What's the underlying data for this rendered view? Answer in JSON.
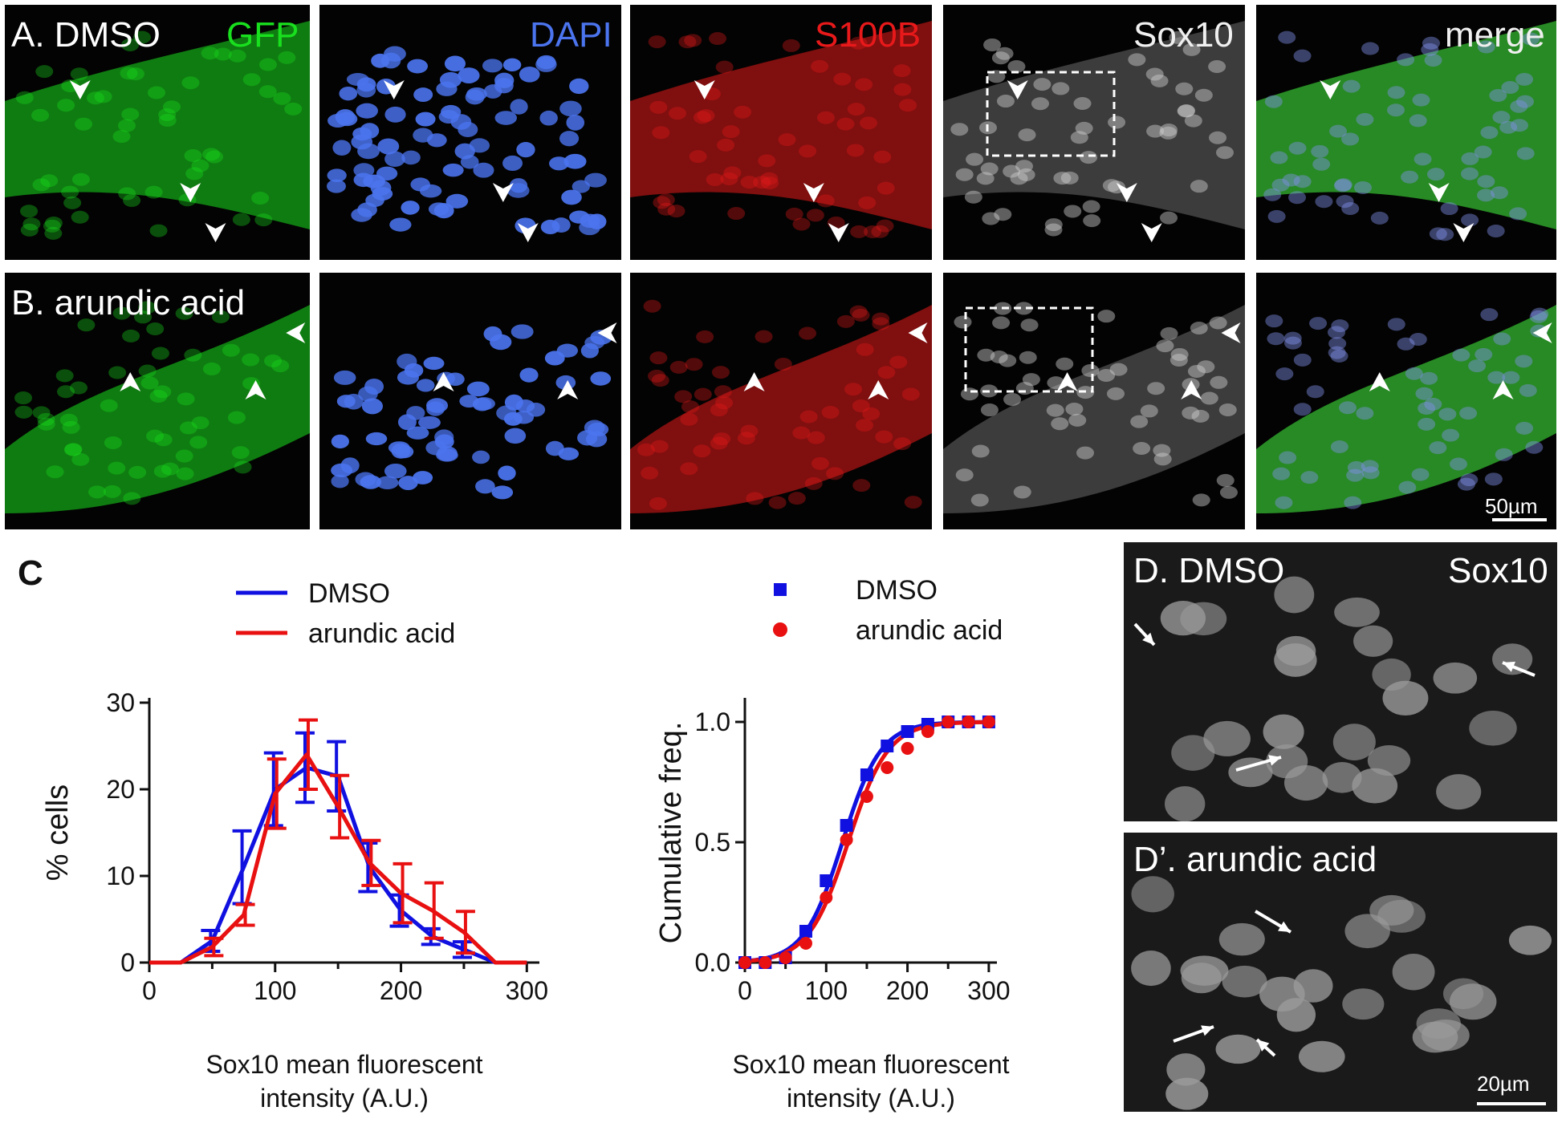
{
  "colors": {
    "gfp": "#19e01e",
    "dapi": "#4b74ee",
    "s100b": "#e8191a",
    "sox10": "#ffffff",
    "merge": "#ffffff",
    "dmso_series": "#1010e0",
    "arundic_series": "#e81010"
  },
  "rows": [
    {
      "label": "A. DMSO",
      "row": "row-a"
    },
    {
      "label": "B. arundic acid",
      "row": "row-b"
    }
  ],
  "channels": [
    "GFP",
    "DAPI",
    "S100B",
    "Sox10",
    "merge"
  ],
  "scale_bar_top": "50µm",
  "panel_c_letter": "C",
  "panel_d": {
    "label": "D. DMSO",
    "channel": "Sox10"
  },
  "panel_d_prime": {
    "label": "D’. arundic acid",
    "scale_bar": "20µm"
  },
  "icons": [
    "arrowhead-icon",
    "arrow-icon"
  ],
  "chart_data": [
    {
      "type": "line",
      "title": "",
      "xlabel_lines": [
        "Sox10 mean fluorescent",
        "intensity (A.U.)"
      ],
      "ylabel": "% cells",
      "xlim": [
        0,
        310
      ],
      "ylim": [
        0,
        30
      ],
      "xticks": [
        0,
        100,
        200,
        300
      ],
      "yticks": [
        0,
        10,
        20,
        30
      ],
      "legend": "top",
      "series": [
        {
          "name": "DMSO",
          "color": "#1010e0",
          "x": [
            0,
            25,
            50,
            75,
            100,
            125,
            150,
            175,
            200,
            225,
            250,
            275,
            300
          ],
          "y": [
            0,
            0,
            2.5,
            11,
            20,
            22.5,
            21.5,
            11,
            6,
            3,
            1.5,
            0,
            0
          ],
          "err": [
            0,
            0,
            1.2,
            4.2,
            4.2,
            4,
            4,
            2.8,
            1.8,
            0.9,
            0.9,
            0,
            0
          ]
        },
        {
          "name": "arundic acid",
          "color": "#e81010",
          "x": [
            0,
            25,
            50,
            75,
            100,
            125,
            150,
            175,
            200,
            225,
            250,
            275,
            300
          ],
          "y": [
            0,
            0,
            1.8,
            5.5,
            19.5,
            24,
            18,
            11.5,
            8,
            6,
            3.5,
            0,
            0
          ],
          "err": [
            0,
            0,
            1,
            1.2,
            4,
            4,
            3.6,
            2.6,
            3.4,
            3.2,
            2.4,
            0,
            0
          ]
        }
      ]
    },
    {
      "type": "scatter",
      "title": "",
      "xlabel_lines": [
        "Sox10 mean fluorescent",
        "intensity (A.U.)"
      ],
      "ylabel": "Cumulative freq.",
      "xlim": [
        0,
        310
      ],
      "ylim": [
        0,
        1.08
      ],
      "xticks": [
        0,
        100,
        200,
        300
      ],
      "yticks": [
        0.0,
        0.5,
        1.0
      ],
      "ytick_labels": [
        "0.0",
        "0.5",
        "1.0"
      ],
      "legend": "top",
      "series": [
        {
          "name": "DMSO",
          "marker": "square",
          "color": "#1010e0",
          "x": [
            0,
            25,
            50,
            75,
            100,
            125,
            150,
            175,
            200,
            225,
            250,
            275,
            300
          ],
          "y": [
            0,
            0,
            0.02,
            0.13,
            0.34,
            0.57,
            0.78,
            0.9,
            0.96,
            0.99,
            1.0,
            1.0,
            1.0
          ],
          "fit_x50": 120,
          "fit_slope": 26
        },
        {
          "name": "arundic acid",
          "marker": "circle",
          "color": "#e81010",
          "x": [
            0,
            25,
            50,
            75,
            100,
            125,
            150,
            175,
            200,
            225,
            250,
            275,
            300
          ],
          "y": [
            0,
            0,
            0.02,
            0.08,
            0.27,
            0.51,
            0.69,
            0.81,
            0.89,
            0.96,
            1.0,
            1.0,
            1.0
          ],
          "fit_x50": 127,
          "fit_slope": 27
        }
      ]
    }
  ]
}
